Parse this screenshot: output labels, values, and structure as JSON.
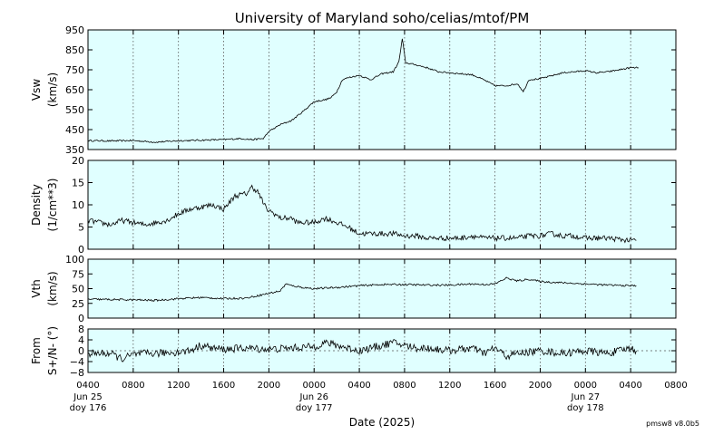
{
  "chart_data": {
    "type": "line",
    "title": "University of Maryland  soho/celias/mtof/PM",
    "xlabel": "Date (2025)",
    "version_label": "pmsw8 v8.0b5",
    "x_range_hours": [
      0,
      52
    ],
    "x_ticks": [
      {
        "h": 0,
        "time": "0400",
        "date": "Jun 25",
        "doy": "doy 176"
      },
      {
        "h": 4,
        "time": "0800"
      },
      {
        "h": 8,
        "time": "1200"
      },
      {
        "h": 12,
        "time": "1600"
      },
      {
        "h": 16,
        "time": "2000"
      },
      {
        "h": 20,
        "time": "0000",
        "date": "Jun 26",
        "doy": "doy 177"
      },
      {
        "h": 24,
        "time": "0400"
      },
      {
        "h": 28,
        "time": "0800"
      },
      {
        "h": 32,
        "time": "1200"
      },
      {
        "h": 36,
        "time": "1600"
      },
      {
        "h": 40,
        "time": "2000"
      },
      {
        "h": 44,
        "time": "0000",
        "date": "Jun 27",
        "doy": "doy 178"
      },
      {
        "h": 48,
        "time": "0400"
      },
      {
        "h": 52,
        "time": "0800"
      }
    ],
    "panels": [
      {
        "id": "vsw",
        "ylabel_lines": [
          "Vsw",
          "(km/s)"
        ],
        "ylim": [
          350,
          950
        ],
        "yticks": [
          350,
          450,
          550,
          650,
          750,
          850,
          950
        ],
        "noise": 4,
        "x": [
          0,
          2,
          4,
          6,
          8,
          10,
          12,
          13.5,
          14.5,
          15.5,
          16,
          17,
          17.5,
          18,
          19,
          20,
          21,
          21.5,
          22,
          22.5,
          23,
          24,
          25,
          26,
          27,
          27.5,
          27.8,
          28.1,
          29,
          30,
          31,
          32,
          33,
          34,
          35,
          36,
          37,
          38,
          38.5,
          39,
          40,
          41,
          42,
          43,
          44,
          45,
          46,
          47,
          48,
          48.7
        ],
        "y": [
          395,
          393,
          395,
          387,
          394,
          397,
          400,
          405,
          400,
          405,
          440,
          475,
          485,
          495,
          540,
          590,
          600,
          610,
          640,
          700,
          710,
          722,
          700,
          730,
          740,
          790,
          905,
          785,
          775,
          760,
          740,
          735,
          730,
          725,
          700,
          670,
          670,
          680,
          640,
          700,
          705,
          720,
          735,
          740,
          745,
          735,
          740,
          750,
          760,
          760
        ]
      },
      {
        "id": "density",
        "ylabel_lines": [
          "Density",
          "(1/cm**3)"
        ],
        "ylim": [
          0,
          20
        ],
        "yticks": [
          0,
          5,
          10,
          15,
          20
        ],
        "noise": 0.6,
        "x": [
          0,
          1,
          2,
          3,
          4,
          5,
          6,
          7,
          8,
          9,
          10,
          11,
          12,
          13,
          14,
          14.5,
          15,
          15.8,
          16.5,
          17,
          18,
          18.5,
          19,
          20,
          21,
          22,
          23,
          24,
          25,
          26,
          27,
          28,
          29,
          30,
          31,
          32,
          33,
          34,
          35,
          36,
          37,
          38,
          39,
          40,
          41,
          42,
          43,
          44,
          45,
          46,
          47,
          48,
          48.5
        ],
        "y": [
          6.5,
          6,
          5.5,
          6.5,
          6,
          5.5,
          6,
          6.5,
          8,
          9,
          9.5,
          10,
          9,
          12,
          12.5,
          14,
          13,
          9,
          8,
          7,
          7,
          6,
          6,
          6,
          7,
          6,
          5,
          3.5,
          3.5,
          3.5,
          3.5,
          3,
          3,
          2.5,
          2.5,
          2.5,
          2.5,
          3,
          2.5,
          2.5,
          2.5,
          2.5,
          3,
          3,
          3.5,
          3,
          3,
          2.5,
          2.5,
          2.5,
          2.2,
          2,
          2
        ]
      },
      {
        "id": "vth",
        "ylabel_lines": [
          "Vth",
          "(km/s)"
        ],
        "ylim": [
          0,
          100
        ],
        "yticks": [
          0,
          25,
          50,
          75,
          100
        ],
        "noise": 1.6,
        "x": [
          0,
          4,
          6,
          8,
          10,
          12,
          14,
          15,
          16,
          17,
          17.5,
          18,
          19,
          20,
          22,
          24,
          26,
          28,
          30,
          32,
          34,
          35,
          36,
          37,
          38,
          39,
          40,
          42,
          44,
          46,
          48,
          48.5
        ],
        "y": [
          32,
          31,
          30,
          33,
          35,
          33,
          34,
          38,
          42,
          46,
          58,
          55,
          52,
          50,
          52,
          55,
          57,
          57,
          56,
          56,
          58,
          57,
          58,
          68,
          63,
          66,
          62,
          60,
          58,
          56,
          55,
          55
        ]
      },
      {
        "id": "from",
        "ylabel_lines": [
          "From",
          "S+/N- (°)"
        ],
        "ylim": [
          -8,
          8
        ],
        "yticks": [
          -8,
          -4,
          0,
          4,
          8
        ],
        "ytick_labels": [
          "−8",
          "−4",
          "0",
          "4",
          "8"
        ],
        "dashed_zero": true,
        "noise": 1.4,
        "x": [
          0,
          2,
          3,
          4,
          5,
          6,
          8,
          9,
          10,
          11,
          12,
          14,
          16,
          18,
          20,
          21,
          22,
          24,
          26,
          27,
          28,
          29,
          30,
          32,
          34,
          35,
          36,
          37,
          38,
          40,
          42,
          44,
          46,
          48,
          48.5
        ],
        "y": [
          -1,
          -1,
          -3,
          -1.5,
          -1,
          -1,
          -0.5,
          0,
          2,
          1,
          0.5,
          1,
          0.5,
          1,
          1.5,
          3,
          2,
          0,
          2,
          3,
          2,
          1,
          1,
          0,
          1,
          -1,
          1,
          -2,
          -1,
          0,
          -1,
          0,
          -1,
          1,
          0
        ]
      }
    ]
  }
}
